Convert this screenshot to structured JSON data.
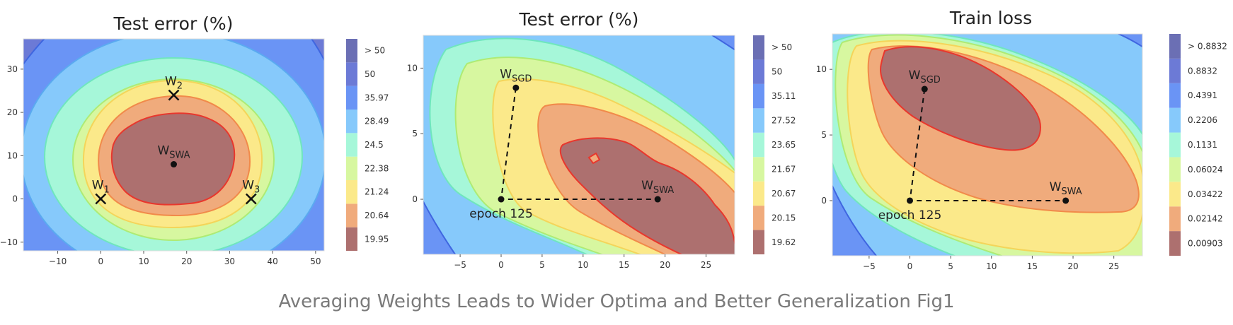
{
  "caption": "Averaging Weights Leads to Wider Optima and Better Generalization Fig1",
  "chart_data": [
    {
      "type": "contour",
      "title": "Test error (%)",
      "xlim": [
        -18,
        52
      ],
      "ylim": [
        -12,
        37
      ],
      "xticks": [
        -10,
        0,
        10,
        20,
        30,
        40,
        50
      ],
      "yticks": [
        -10,
        0,
        10,
        20,
        30
      ],
      "xtick_labels": [
        "−10",
        "0",
        "10",
        "20",
        "30",
        "40",
        "50"
      ],
      "ytick_labels": [
        "−10",
        "0",
        "10",
        "20",
        "30"
      ],
      "levels": [
        "19.95",
        "20.64",
        "21.24",
        "22.38",
        "24.5",
        "28.49",
        "35.97",
        "50",
        "> 50"
      ],
      "points": [
        {
          "label": "W",
          "sub": "1",
          "x": 0,
          "y": 0,
          "marker": "x"
        },
        {
          "label": "W",
          "sub": "2",
          "x": 17,
          "y": 24,
          "marker": "x"
        },
        {
          "label": "W",
          "sub": "3",
          "x": 35,
          "y": 0,
          "marker": "x"
        },
        {
          "label": "W",
          "sub": "SWA",
          "x": 17,
          "y": 8,
          "marker": "dot"
        }
      ]
    },
    {
      "type": "contour",
      "title": "Test error (%)",
      "xlim": [
        -9.5,
        28.5
      ],
      "ylim": [
        -4.2,
        12.5
      ],
      "xticks": [
        -5,
        0,
        5,
        10,
        15,
        20,
        25
      ],
      "yticks": [
        0,
        5,
        10
      ],
      "xtick_labels": [
        "−5",
        "0",
        "5",
        "10",
        "15",
        "20",
        "25"
      ],
      "ytick_labels": [
        "0",
        "5",
        "10"
      ],
      "levels": [
        "19.62",
        "20.15",
        "20.67",
        "21.67",
        "23.65",
        "27.52",
        "35.11",
        "50",
        "> 50"
      ],
      "points": [
        {
          "label": "W",
          "sub": "SGD",
          "x": 1.8,
          "y": 8.5,
          "marker": "dot"
        },
        {
          "label": "epoch 125",
          "sub": "",
          "x": 0,
          "y": 0,
          "marker": "dot"
        },
        {
          "label": "W",
          "sub": "SWA",
          "x": 19.1,
          "y": 0,
          "marker": "dot"
        }
      ]
    },
    {
      "type": "contour",
      "title": "Train loss",
      "xlim": [
        -9.5,
        28.5
      ],
      "ylim": [
        -4.2,
        12.7
      ],
      "xticks": [
        -5,
        0,
        5,
        10,
        15,
        20,
        25
      ],
      "yticks": [
        0,
        5,
        10
      ],
      "xtick_labels": [
        "−5",
        "0",
        "5",
        "10",
        "15",
        "20",
        "25"
      ],
      "ytick_labels": [
        "0",
        "5",
        "10"
      ],
      "levels": [
        "0.00903",
        "0.02142",
        "0.03422",
        "0.06024",
        "0.1131",
        "0.2206",
        "0.4391",
        "0.8832",
        "> 0.8832"
      ],
      "points": [
        {
          "label": "W",
          "sub": "SGD",
          "x": 1.8,
          "y": 8.5,
          "marker": "dot"
        },
        {
          "label": "epoch 125",
          "sub": "",
          "x": 0,
          "y": 0,
          "marker": "dot"
        },
        {
          "label": "W",
          "sub": "SWA",
          "x": 19.1,
          "y": 0,
          "marker": "dot"
        }
      ]
    }
  ],
  "colors": {
    "bands": [
      "#ad706f",
      "#f0ab7c",
      "#fbe98a",
      "#d7f7a0",
      "#a6f7d9",
      "#86c9fb",
      "#6a94f5",
      "#6c7ad6",
      "#6b6fb4"
    ],
    "band_edges": [
      "#e8372d",
      "#f18a4a",
      "#f4d55a",
      "#aeeb74",
      "#6fe6bd",
      "#5aaaf0",
      "#3f66e0",
      "#4651b8",
      "#4651b8"
    ]
  }
}
